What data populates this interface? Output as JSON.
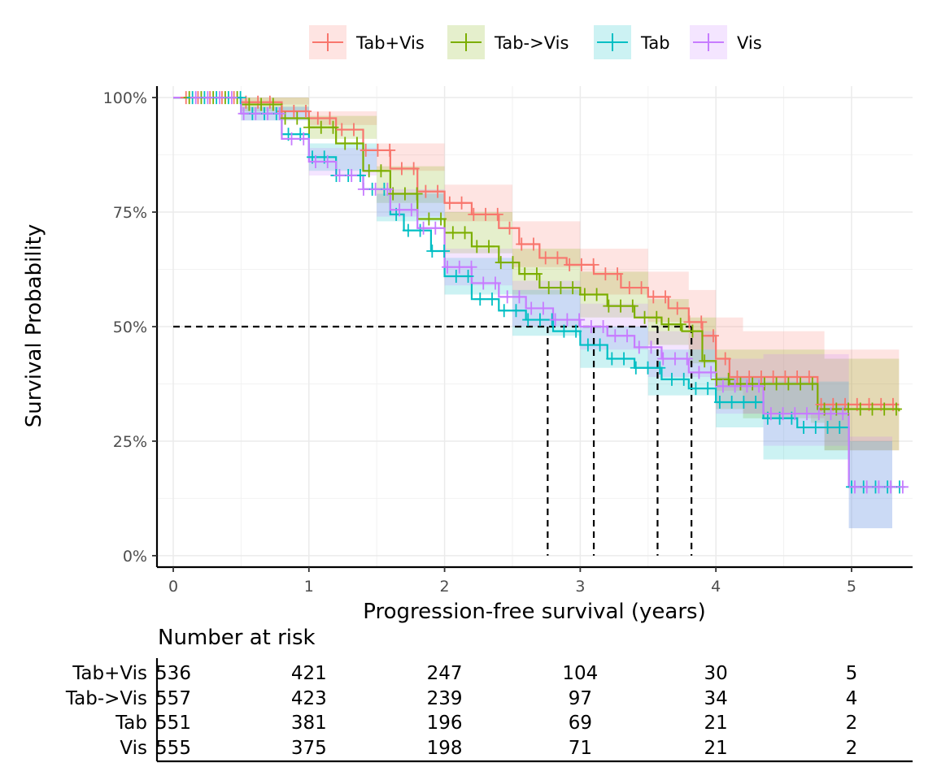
{
  "chart_data": {
    "type": "line",
    "subtype": "kaplan-meier",
    "xlabel": "Progression-free survival (years)",
    "ylabel": "Survival Probability",
    "xlim": [
      -0.12,
      5.45
    ],
    "ylim": [
      -0.025,
      1.025
    ],
    "x_ticks": [
      0,
      1,
      2,
      3,
      4,
      5
    ],
    "x_tick_labels": [
      "0",
      "1",
      "2",
      "3",
      "4",
      "5"
    ],
    "y_ticks": [
      0,
      0.25,
      0.5,
      0.75,
      1.0
    ],
    "y_tick_labels": [
      "0%",
      "25%",
      "50%",
      "75%",
      "100%"
    ],
    "grid": true,
    "legend": {
      "position": "top",
      "entries": [
        "Tab+Vis",
        "Tab->Vis",
        "Tab",
        "Vis"
      ]
    },
    "median_line": {
      "y": 0.5,
      "x_medians": [
        2.76,
        3.1,
        3.57,
        3.82
      ]
    },
    "series": [
      {
        "name": "Tab+Vis",
        "color": "#F8766D",
        "points": [
          [
            0,
            1
          ],
          [
            0.3,
            1
          ],
          [
            0.5,
            0.99
          ],
          [
            0.8,
            0.97
          ],
          [
            1.0,
            0.955
          ],
          [
            1.2,
            0.93
          ],
          [
            1.4,
            0.885
          ],
          [
            1.6,
            0.845
          ],
          [
            1.8,
            0.795
          ],
          [
            2.0,
            0.77
          ],
          [
            2.2,
            0.745
          ],
          [
            2.4,
            0.715
          ],
          [
            2.55,
            0.68
          ],
          [
            2.7,
            0.65
          ],
          [
            2.9,
            0.635
          ],
          [
            3.1,
            0.615
          ],
          [
            3.3,
            0.585
          ],
          [
            3.5,
            0.565
          ],
          [
            3.65,
            0.54
          ],
          [
            3.8,
            0.51
          ],
          [
            3.9,
            0.48
          ],
          [
            4.0,
            0.43
          ],
          [
            4.1,
            0.39
          ],
          [
            4.7,
            0.39
          ],
          [
            4.75,
            0.33
          ],
          [
            5.35,
            0.33
          ]
        ],
        "lower": [
          [
            0,
            1
          ],
          [
            0.5,
            0.985
          ],
          [
            1.0,
            0.94
          ],
          [
            1.5,
            0.84
          ],
          [
            2.0,
            0.73
          ],
          [
            2.5,
            0.63
          ],
          [
            3.0,
            0.57
          ],
          [
            3.5,
            0.51
          ],
          [
            3.8,
            0.45
          ],
          [
            4.0,
            0.36
          ],
          [
            4.2,
            0.31
          ],
          [
            4.7,
            0.3
          ],
          [
            4.8,
            0.23
          ],
          [
            5.35,
            0.23
          ]
        ],
        "upper": [
          [
            0,
            1
          ],
          [
            0.5,
            1
          ],
          [
            1.0,
            0.97
          ],
          [
            1.5,
            0.9
          ],
          [
            2.0,
            0.81
          ],
          [
            2.5,
            0.73
          ],
          [
            3.0,
            0.67
          ],
          [
            3.5,
            0.62
          ],
          [
            3.8,
            0.58
          ],
          [
            4.0,
            0.52
          ],
          [
            4.2,
            0.49
          ],
          [
            4.7,
            0.49
          ],
          [
            4.8,
            0.45
          ],
          [
            5.35,
            0.45
          ]
        ]
      },
      {
        "name": "Tab->Vis",
        "color": "#7CAE00",
        "points": [
          [
            0,
            1
          ],
          [
            0.3,
            1
          ],
          [
            0.5,
            0.985
          ],
          [
            0.8,
            0.955
          ],
          [
            1.0,
            0.935
          ],
          [
            1.2,
            0.9
          ],
          [
            1.4,
            0.84
          ],
          [
            1.6,
            0.79
          ],
          [
            1.8,
            0.735
          ],
          [
            2.0,
            0.705
          ],
          [
            2.2,
            0.675
          ],
          [
            2.4,
            0.64
          ],
          [
            2.55,
            0.615
          ],
          [
            2.7,
            0.585
          ],
          [
            3.0,
            0.57
          ],
          [
            3.2,
            0.545
          ],
          [
            3.4,
            0.52
          ],
          [
            3.6,
            0.505
          ],
          [
            3.75,
            0.49
          ],
          [
            3.9,
            0.425
          ],
          [
            4.0,
            0.385
          ],
          [
            4.1,
            0.375
          ],
          [
            4.7,
            0.375
          ],
          [
            4.75,
            0.32
          ],
          [
            5.35,
            0.315
          ]
        ],
        "lower": [
          [
            0,
            1
          ],
          [
            0.5,
            0.97
          ],
          [
            1.0,
            0.91
          ],
          [
            1.5,
            0.77
          ],
          [
            2.0,
            0.66
          ],
          [
            2.5,
            0.57
          ],
          [
            3.0,
            0.52
          ],
          [
            3.5,
            0.46
          ],
          [
            3.8,
            0.42
          ],
          [
            4.0,
            0.32
          ],
          [
            4.2,
            0.3
          ],
          [
            4.7,
            0.29
          ],
          [
            4.8,
            0.23
          ],
          [
            5.35,
            0.23
          ]
        ],
        "upper": [
          [
            0,
            1
          ],
          [
            0.5,
            1
          ],
          [
            1.0,
            0.96
          ],
          [
            1.5,
            0.85
          ],
          [
            2.0,
            0.75
          ],
          [
            2.5,
            0.67
          ],
          [
            3.0,
            0.62
          ],
          [
            3.5,
            0.56
          ],
          [
            3.8,
            0.52
          ],
          [
            4.0,
            0.45
          ],
          [
            4.2,
            0.45
          ],
          [
            4.7,
            0.45
          ],
          [
            4.8,
            0.43
          ],
          [
            5.35,
            0.43
          ]
        ]
      },
      {
        "name": "Tab",
        "color": "#00BFC4",
        "points": [
          [
            0,
            1
          ],
          [
            0.3,
            1
          ],
          [
            0.5,
            0.965
          ],
          [
            0.8,
            0.92
          ],
          [
            1.0,
            0.87
          ],
          [
            1.2,
            0.83
          ],
          [
            1.4,
            0.8
          ],
          [
            1.6,
            0.745
          ],
          [
            1.7,
            0.71
          ],
          [
            1.9,
            0.665
          ],
          [
            2.0,
            0.61
          ],
          [
            2.2,
            0.56
          ],
          [
            2.4,
            0.535
          ],
          [
            2.6,
            0.515
          ],
          [
            2.8,
            0.49
          ],
          [
            3.0,
            0.46
          ],
          [
            3.2,
            0.43
          ],
          [
            3.4,
            0.41
          ],
          [
            3.6,
            0.385
          ],
          [
            3.8,
            0.365
          ],
          [
            4.0,
            0.335
          ],
          [
            4.35,
            0.3
          ],
          [
            4.6,
            0.28
          ],
          [
            4.95,
            0.28
          ],
          [
            4.98,
            0.15
          ],
          [
            5.35,
            0.15
          ]
        ],
        "lower": [
          [
            0,
            1
          ],
          [
            0.5,
            0.95
          ],
          [
            1.0,
            0.84
          ],
          [
            1.5,
            0.73
          ],
          [
            2.0,
            0.57
          ],
          [
            2.5,
            0.48
          ],
          [
            3.0,
            0.41
          ],
          [
            3.5,
            0.35
          ],
          [
            4.0,
            0.28
          ],
          [
            4.35,
            0.21
          ],
          [
            4.95,
            0.21
          ],
          [
            4.98,
            0.06
          ],
          [
            5.3,
            0.06
          ]
        ],
        "upper": [
          [
            0,
            1
          ],
          [
            0.5,
            0.98
          ],
          [
            1.0,
            0.9
          ],
          [
            1.5,
            0.79
          ],
          [
            2.0,
            0.65
          ],
          [
            2.5,
            0.58
          ],
          [
            3.0,
            0.5
          ],
          [
            3.5,
            0.45
          ],
          [
            4.0,
            0.39
          ],
          [
            4.35,
            0.38
          ],
          [
            4.95,
            0.38
          ],
          [
            4.98,
            0.25
          ],
          [
            5.3,
            0.25
          ]
        ]
      },
      {
        "name": "Vis",
        "color": "#C77CFF",
        "points": [
          [
            0,
            1
          ],
          [
            0.3,
            1
          ],
          [
            0.5,
            0.965
          ],
          [
            0.8,
            0.91
          ],
          [
            1.0,
            0.86
          ],
          [
            1.2,
            0.83
          ],
          [
            1.4,
            0.8
          ],
          [
            1.6,
            0.755
          ],
          [
            1.8,
            0.715
          ],
          [
            2.0,
            0.63
          ],
          [
            2.2,
            0.595
          ],
          [
            2.4,
            0.565
          ],
          [
            2.6,
            0.54
          ],
          [
            2.8,
            0.515
          ],
          [
            3.0,
            0.5
          ],
          [
            3.2,
            0.48
          ],
          [
            3.4,
            0.455
          ],
          [
            3.6,
            0.43
          ],
          [
            3.8,
            0.4
          ],
          [
            4.0,
            0.37
          ],
          [
            4.35,
            0.31
          ],
          [
            4.6,
            0.31
          ],
          [
            4.95,
            0.31
          ],
          [
            4.98,
            0.15
          ],
          [
            5.35,
            0.15
          ]
        ],
        "lower": [
          [
            0,
            1
          ],
          [
            0.5,
            0.95
          ],
          [
            1.0,
            0.83
          ],
          [
            1.5,
            0.74
          ],
          [
            2.0,
            0.59
          ],
          [
            2.5,
            0.5
          ],
          [
            3.0,
            0.45
          ],
          [
            3.5,
            0.39
          ],
          [
            4.0,
            0.31
          ],
          [
            4.35,
            0.24
          ],
          [
            4.95,
            0.24
          ],
          [
            4.98,
            0.06
          ],
          [
            5.3,
            0.06
          ]
        ],
        "upper": [
          [
            0,
            1
          ],
          [
            0.5,
            0.98
          ],
          [
            1.0,
            0.89
          ],
          [
            1.5,
            0.8
          ],
          [
            2.0,
            0.67
          ],
          [
            2.5,
            0.6
          ],
          [
            3.0,
            0.55
          ],
          [
            3.5,
            0.49
          ],
          [
            4.0,
            0.43
          ],
          [
            4.35,
            0.44
          ],
          [
            4.95,
            0.44
          ],
          [
            4.98,
            0.26
          ],
          [
            5.3,
            0.26
          ]
        ]
      }
    ],
    "risk_table": {
      "title": "Number at risk",
      "times": [
        0,
        1,
        2,
        3,
        4,
        5
      ],
      "rows": [
        {
          "name": "Tab+Vis",
          "values": [
            "536",
            "421",
            "247",
            "104",
            "30",
            "5"
          ]
        },
        {
          "name": "Tab->Vis",
          "values": [
            "557",
            "423",
            "239",
            "97",
            "34",
            "4"
          ]
        },
        {
          "name": "Tab",
          "values": [
            "551",
            "381",
            "196",
            "69",
            "21",
            "2"
          ]
        },
        {
          "name": "Vis",
          "values": [
            "555",
            "375",
            "198",
            "71",
            "21",
            "2"
          ]
        }
      ]
    }
  }
}
